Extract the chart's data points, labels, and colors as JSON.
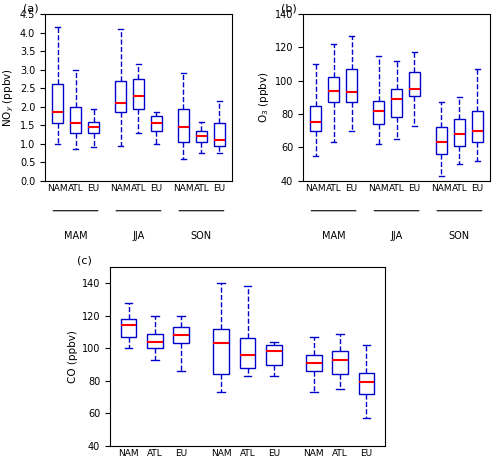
{
  "panels": {
    "a": {
      "title": "(a)",
      "ylabel": "NO$_y$ (ppbv)",
      "ylim": [
        0,
        4.5
      ],
      "yticks": [
        0.0,
        0.5,
        1.0,
        1.5,
        2.0,
        2.5,
        3.0,
        3.5,
        4.0,
        4.5
      ],
      "boxes": {
        "MAM_NAM": {
          "q1": 1.55,
          "median": 1.85,
          "q3": 2.6,
          "whislo": 1.0,
          "whishi": 4.15
        },
        "MAM_ATL": {
          "q1": 1.3,
          "median": 1.55,
          "q3": 2.0,
          "whislo": 0.85,
          "whishi": 3.0
        },
        "MAM_EU": {
          "q1": 1.3,
          "median": 1.45,
          "q3": 1.6,
          "whislo": 0.9,
          "whishi": 1.95
        },
        "JJA_NAM": {
          "q1": 1.85,
          "median": 2.1,
          "q3": 2.7,
          "whislo": 0.95,
          "whishi": 4.1
        },
        "JJA_ATL": {
          "q1": 1.95,
          "median": 2.3,
          "q3": 2.75,
          "whislo": 1.3,
          "whishi": 3.15
        },
        "JJA_EU": {
          "q1": 1.35,
          "median": 1.55,
          "q3": 1.75,
          "whislo": 1.0,
          "whishi": 1.85
        },
        "SON_NAM": {
          "q1": 1.05,
          "median": 1.45,
          "q3": 1.95,
          "whislo": 0.6,
          "whishi": 2.9
        },
        "SON_ATL": {
          "q1": 1.05,
          "median": 1.2,
          "q3": 1.35,
          "whislo": 0.75,
          "whishi": 1.6
        },
        "SON_EU": {
          "q1": 0.95,
          "median": 1.1,
          "q3": 1.55,
          "whislo": 0.75,
          "whishi": 2.15
        }
      }
    },
    "b": {
      "title": "(b)",
      "ylabel": "O$_3$ (ppbv)",
      "ylim": [
        40,
        140
      ],
      "yticks": [
        40,
        60,
        80,
        100,
        120,
        140
      ],
      "boxes": {
        "MAM_NAM": {
          "q1": 70,
          "median": 75,
          "q3": 85,
          "whislo": 55,
          "whishi": 110
        },
        "MAM_ATL": {
          "q1": 87,
          "median": 94,
          "q3": 102,
          "whislo": 63,
          "whishi": 122
        },
        "MAM_EU": {
          "q1": 87,
          "median": 93,
          "q3": 107,
          "whislo": 70,
          "whishi": 127
        },
        "JJA_NAM": {
          "q1": 74,
          "median": 82,
          "q3": 88,
          "whislo": 62,
          "whishi": 115
        },
        "JJA_ATL": {
          "q1": 78,
          "median": 89,
          "q3": 95,
          "whislo": 65,
          "whishi": 112
        },
        "JJA_EU": {
          "q1": 91,
          "median": 95,
          "q3": 105,
          "whislo": 73,
          "whishi": 117
        },
        "SON_NAM": {
          "q1": 56,
          "median": 63,
          "q3": 72,
          "whislo": 43,
          "whishi": 87
        },
        "SON_ATL": {
          "q1": 61,
          "median": 68,
          "q3": 77,
          "whislo": 50,
          "whishi": 90
        },
        "SON_EU": {
          "q1": 63,
          "median": 70,
          "q3": 82,
          "whislo": 52,
          "whishi": 107
        }
      }
    },
    "c": {
      "title": "(c)",
      "ylabel": "CO (ppbv)",
      "ylim": [
        40,
        150
      ],
      "yticks": [
        40,
        60,
        80,
        100,
        120,
        140
      ],
      "boxes": {
        "MAM_NAM": {
          "q1": 107,
          "median": 114,
          "q3": 118,
          "whislo": 100,
          "whishi": 128
        },
        "MAM_ATL": {
          "q1": 100,
          "median": 104,
          "q3": 109,
          "whislo": 93,
          "whishi": 120
        },
        "MAM_EU": {
          "q1": 103,
          "median": 108,
          "q3": 113,
          "whislo": 86,
          "whishi": 120
        },
        "JJA_NAM": {
          "q1": 84,
          "median": 103,
          "q3": 112,
          "whislo": 73,
          "whishi": 140
        },
        "JJA_ATL": {
          "q1": 88,
          "median": 96,
          "q3": 106,
          "whislo": 83,
          "whishi": 138
        },
        "JJA_EU": {
          "q1": 90,
          "median": 98,
          "q3": 102,
          "whislo": 83,
          "whishi": 104
        },
        "SON_NAM": {
          "q1": 86,
          "median": 91,
          "q3": 96,
          "whislo": 73,
          "whishi": 107
        },
        "SON_ATL": {
          "q1": 84,
          "median": 93,
          "q3": 98,
          "whislo": 75,
          "whishi": 109
        },
        "SON_EU": {
          "q1": 72,
          "median": 79,
          "q3": 85,
          "whislo": 57,
          "whishi": 102
        }
      }
    }
  },
  "seasons": [
    "MAM",
    "JJA",
    "SON"
  ],
  "regions": [
    "NAM",
    "ATL",
    "EU"
  ],
  "box_color": "#0000CC",
  "median_color": "#FF0000",
  "background_color": "#ffffff"
}
